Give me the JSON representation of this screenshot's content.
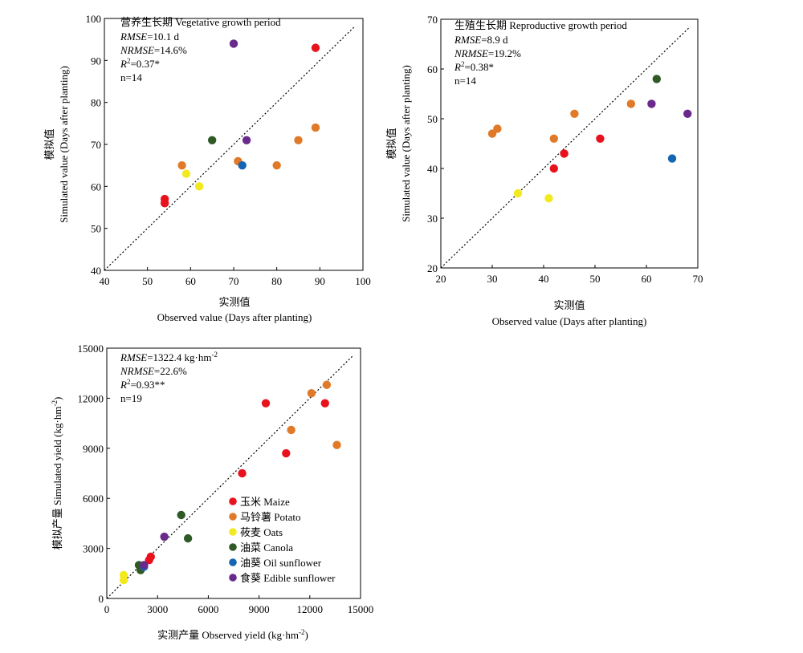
{
  "colors": {
    "maize": "#e8121c",
    "potato": "#e07a28",
    "oats": "#f2ea1e",
    "canola": "#2f5a25",
    "oil_sunflower": "#1565b5",
    "edible_sunflower": "#6a2a8c"
  },
  "legend": [
    {
      "key": "maize",
      "label": "玉米 Maize"
    },
    {
      "key": "potato",
      "label": "马铃薯 Potato"
    },
    {
      "key": "oats",
      "label": "莜麦 Oats"
    },
    {
      "key": "canola",
      "label": "油菜 Canola"
    },
    {
      "key": "oil_sunflower",
      "label": "油葵 Oil sunflower"
    },
    {
      "key": "edible_sunflower",
      "label": "食葵 Edible sunflower"
    }
  ],
  "chart_data": [
    {
      "type": "scatter",
      "title": "营养生长期 Vegetative growth period",
      "xlabel_cn": "实测值",
      "xlabel": "Observed value (Days after planting)",
      "ylabel_cn": "模拟值",
      "ylabel": "Simulated value (Days after planting)",
      "xlim": [
        40,
        100
      ],
      "ylim": [
        40,
        100
      ],
      "xticks": [
        40,
        50,
        60,
        70,
        80,
        90,
        100
      ],
      "yticks": [
        40,
        50,
        60,
        70,
        80,
        90,
        100
      ],
      "stats": {
        "rmse": "=10.1 d",
        "nrmse": "=14.6%",
        "r2": "=0.37*",
        "n": "n=14"
      },
      "points": [
        {
          "x": 54,
          "y": 57,
          "s": "maize"
        },
        {
          "x": 54,
          "y": 56,
          "s": "maize"
        },
        {
          "x": 89,
          "y": 93,
          "s": "maize"
        },
        {
          "x": 58,
          "y": 65,
          "s": "potato"
        },
        {
          "x": 71,
          "y": 66,
          "s": "potato"
        },
        {
          "x": 80,
          "y": 65,
          "s": "potato"
        },
        {
          "x": 85,
          "y": 71,
          "s": "potato"
        },
        {
          "x": 89,
          "y": 74,
          "s": "potato"
        },
        {
          "x": 59,
          "y": 63,
          "s": "oats"
        },
        {
          "x": 62,
          "y": 60,
          "s": "oats"
        },
        {
          "x": 65,
          "y": 71,
          "s": "canola"
        },
        {
          "x": 72,
          "y": 65,
          "s": "oil_sunflower"
        },
        {
          "x": 70,
          "y": 94,
          "s": "edible_sunflower"
        },
        {
          "x": 73,
          "y": 71,
          "s": "edible_sunflower"
        }
      ]
    },
    {
      "type": "scatter",
      "title": "生殖生长期 Reproductive growth period",
      "xlabel_cn": "实测值",
      "xlabel": "Observed value (Days after planting)",
      "ylabel_cn": "模拟值",
      "ylabel": "Simulated value (Days after planting)",
      "xlim": [
        20,
        70
      ],
      "ylim": [
        20,
        70
      ],
      "xticks": [
        20,
        30,
        40,
        50,
        60,
        70
      ],
      "yticks": [
        20,
        30,
        40,
        50,
        60,
        70
      ],
      "stats": {
        "rmse": "=8.9 d",
        "nrmse": "=19.2%",
        "r2": "=0.38*",
        "n": "n=14"
      },
      "points": [
        {
          "x": 42,
          "y": 40,
          "s": "maize"
        },
        {
          "x": 44,
          "y": 43,
          "s": "maize"
        },
        {
          "x": 51,
          "y": 46,
          "s": "maize"
        },
        {
          "x": 30,
          "y": 47,
          "s": "potato"
        },
        {
          "x": 31,
          "y": 48,
          "s": "potato"
        },
        {
          "x": 42,
          "y": 46,
          "s": "potato"
        },
        {
          "x": 46,
          "y": 51,
          "s": "potato"
        },
        {
          "x": 57,
          "y": 53,
          "s": "potato"
        },
        {
          "x": 35,
          "y": 35,
          "s": "oats"
        },
        {
          "x": 41,
          "y": 34,
          "s": "oats"
        },
        {
          "x": 62,
          "y": 58,
          "s": "canola"
        },
        {
          "x": 65,
          "y": 42,
          "s": "oil_sunflower"
        },
        {
          "x": 61,
          "y": 53,
          "s": "edible_sunflower"
        },
        {
          "x": 68,
          "y": 51,
          "s": "edible_sunflower"
        }
      ]
    },
    {
      "type": "scatter",
      "title": "",
      "xlabel_cn": "实测产量",
      "xlabel": "Observed yield (kg·hm",
      "xlabel_sup": "-2",
      "xlabel_end": ")",
      "ylabel_cn": "模拟产量",
      "ylabel": "Simulated yield (kg·hm",
      "ylabel_sup": "-2",
      "ylabel_end": ")",
      "xlim": [
        0,
        15000
      ],
      "ylim": [
        0,
        15000
      ],
      "xticks": [
        0,
        3000,
        6000,
        9000,
        12000,
        15000
      ],
      "yticks": [
        0,
        3000,
        6000,
        9000,
        12000,
        15000
      ],
      "stats": {
        "rmse": "=1322.4 kg·hm",
        "rmse_sup": "-2",
        "nrmse": "=22.6%",
        "r2": "=0.93**",
        "n": "n=19"
      },
      "points": [
        {
          "x": 9400,
          "y": 11700,
          "s": "maize"
        },
        {
          "x": 12900,
          "y": 11700,
          "s": "maize"
        },
        {
          "x": 10600,
          "y": 8700,
          "s": "maize"
        },
        {
          "x": 8000,
          "y": 7500,
          "s": "maize"
        },
        {
          "x": 2600,
          "y": 2500,
          "s": "maize"
        },
        {
          "x": 2500,
          "y": 2300,
          "s": "maize"
        },
        {
          "x": 12100,
          "y": 12300,
          "s": "potato"
        },
        {
          "x": 13000,
          "y": 12800,
          "s": "potato"
        },
        {
          "x": 10900,
          "y": 10100,
          "s": "potato"
        },
        {
          "x": 13600,
          "y": 9200,
          "s": "potato"
        },
        {
          "x": 1000,
          "y": 1400,
          "s": "oats"
        },
        {
          "x": 1000,
          "y": 1100,
          "s": "oats"
        },
        {
          "x": 4400,
          "y": 5000,
          "s": "canola"
        },
        {
          "x": 4800,
          "y": 3600,
          "s": "canola"
        },
        {
          "x": 1900,
          "y": 2000,
          "s": "canola"
        },
        {
          "x": 2000,
          "y": 1700,
          "s": "canola"
        },
        {
          "x": 2200,
          "y": 1900,
          "s": "oil_sunflower"
        },
        {
          "x": 3400,
          "y": 3700,
          "s": "edible_sunflower"
        },
        {
          "x": 2200,
          "y": 2000,
          "s": "edible_sunflower"
        }
      ]
    }
  ]
}
